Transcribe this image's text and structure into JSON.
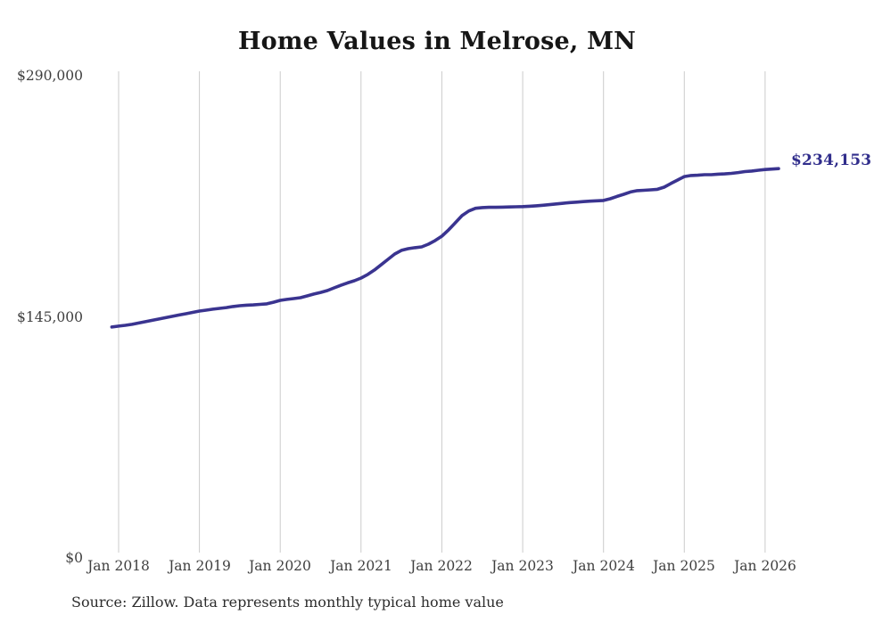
{
  "title": "Home Values in Melrose, MN",
  "source_note": "Source: Zillow. Data represents monthly typical home value",
  "chart_data": {
    "type": "line",
    "title": "Home Values in Melrose, MN",
    "series_name": "Monthly typical home value",
    "unit": "USD",
    "frequency": "monthly",
    "start_month": "2017-12",
    "end_month": "2026-03",
    "values": [
      138900,
      139400,
      139900,
      140500,
      141300,
      142100,
      142900,
      143700,
      144500,
      145300,
      146100,
      146900,
      147700,
      148500,
      149000,
      149600,
      150100,
      150600,
      151200,
      151700,
      152000,
      152200,
      152500,
      152800,
      153800,
      154900,
      155500,
      156000,
      156500,
      157600,
      158700,
      159700,
      160800,
      162400,
      164000,
      165400,
      166700,
      168300,
      170500,
      173200,
      176400,
      179600,
      182800,
      185000,
      186000,
      186600,
      187100,
      188700,
      190900,
      193500,
      197300,
      201600,
      205900,
      208700,
      210300,
      210700,
      210900,
      210900,
      211000,
      211100,
      211200,
      211300,
      211500,
      211800,
      212100,
      212500,
      212900,
      213300,
      213700,
      214000,
      214300,
      214600,
      214800,
      215000,
      216000,
      217400,
      218700,
      220100,
      220900,
      221100,
      221400,
      221700,
      223000,
      225200,
      227300,
      229400,
      230000,
      230200,
      230500,
      230500,
      230800,
      231000,
      231300,
      231800,
      232400,
      232700,
      233200,
      233600,
      233900,
      234153
    ],
    "end_label": "$234,153",
    "end_value": 234153,
    "y_axis": {
      "range": [
        0,
        290000
      ],
      "ticks": [
        {
          "label": "$0",
          "value": 0
        },
        {
          "label": "$145,000",
          "value": 145000
        },
        {
          "label": "$290,000",
          "value": 290000
        }
      ]
    },
    "x_axis": {
      "ticks": [
        {
          "label": "Jan 2018",
          "month_index": 1
        },
        {
          "label": "Jan 2019",
          "month_index": 13
        },
        {
          "label": "Jan 2020",
          "month_index": 25
        },
        {
          "label": "Jan 2021",
          "month_index": 37
        },
        {
          "label": "Jan 2022",
          "month_index": 49
        },
        {
          "label": "Jan 2023",
          "month_index": 61
        },
        {
          "label": "Jan 2024",
          "month_index": 73
        },
        {
          "label": "Jan 2025",
          "month_index": 85
        },
        {
          "label": "Jan 2026",
          "month_index": 97
        }
      ]
    },
    "grid": "vertical-only",
    "legend": "none",
    "colors": {
      "line": "#3a3490",
      "end_label": "#312e8c",
      "grid": "#cbcbcb",
      "axis_text": "#3f3f3f",
      "title": "#161616",
      "source": "#2d2d2d",
      "background": "#ffffff"
    }
  }
}
